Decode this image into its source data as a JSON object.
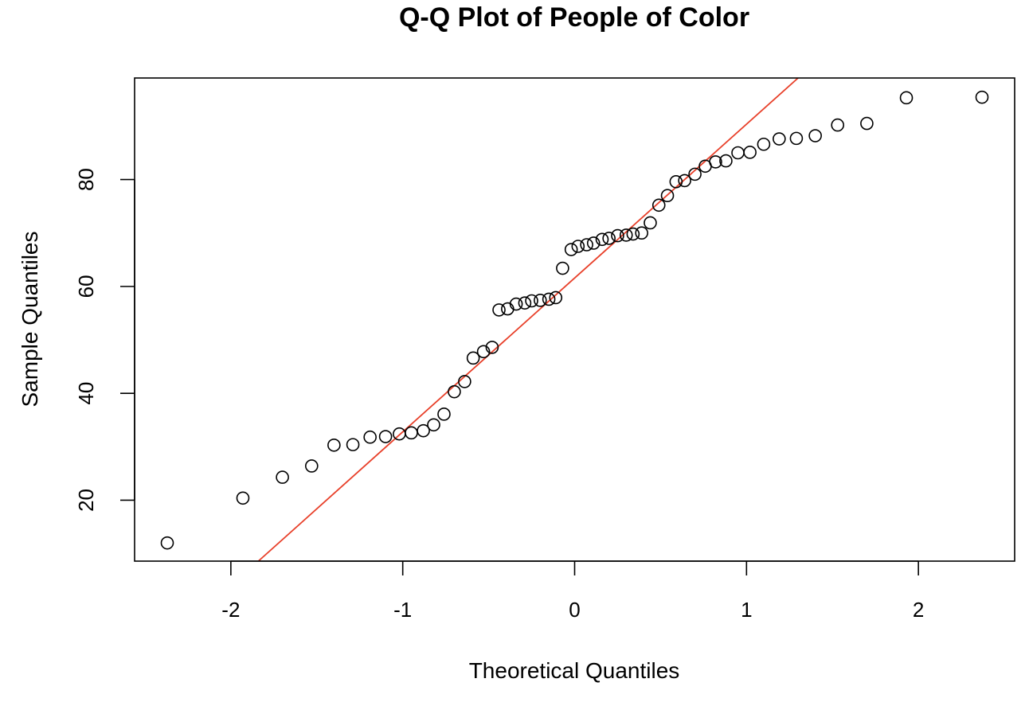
{
  "chart_data": {
    "type": "scatter",
    "title": "Q-Q Plot of People of Color",
    "xlabel": "Theoretical Quantiles",
    "ylabel": "Sample Quantiles",
    "xlim": [
      -2.56,
      2.56
    ],
    "ylim": [
      8.6,
      99
    ],
    "xticks": [
      -2,
      -1,
      0,
      1,
      2
    ],
    "xtick_labels": [
      "-2",
      "-1",
      "0",
      "1",
      "2"
    ],
    "yticks": [
      20,
      40,
      60,
      80
    ],
    "ytick_labels": [
      "20",
      "40",
      "60",
      "80"
    ],
    "grid": false,
    "points": [
      {
        "x": -2.37,
        "y": 12.0
      },
      {
        "x": -1.93,
        "y": 20.4
      },
      {
        "x": -1.7,
        "y": 24.3
      },
      {
        "x": -1.53,
        "y": 26.4
      },
      {
        "x": -1.4,
        "y": 30.3
      },
      {
        "x": -1.29,
        "y": 30.4
      },
      {
        "x": -1.19,
        "y": 31.8
      },
      {
        "x": -1.1,
        "y": 31.9
      },
      {
        "x": -1.02,
        "y": 32.4
      },
      {
        "x": -0.95,
        "y": 32.6
      },
      {
        "x": -0.88,
        "y": 33.0
      },
      {
        "x": -0.82,
        "y": 34.1
      },
      {
        "x": -0.76,
        "y": 36.1
      },
      {
        "x": -0.7,
        "y": 40.3
      },
      {
        "x": -0.64,
        "y": 42.2
      },
      {
        "x": -0.59,
        "y": 46.6
      },
      {
        "x": -0.53,
        "y": 47.8
      },
      {
        "x": -0.48,
        "y": 48.6
      },
      {
        "x": -0.44,
        "y": 55.6
      },
      {
        "x": -0.39,
        "y": 55.8
      },
      {
        "x": -0.34,
        "y": 56.7
      },
      {
        "x": -0.29,
        "y": 56.9
      },
      {
        "x": -0.25,
        "y": 57.3
      },
      {
        "x": -0.2,
        "y": 57.4
      },
      {
        "x": -0.15,
        "y": 57.6
      },
      {
        "x": -0.11,
        "y": 57.9
      },
      {
        "x": -0.07,
        "y": 63.4
      },
      {
        "x": -0.02,
        "y": 66.9
      },
      {
        "x": 0.02,
        "y": 67.5
      },
      {
        "x": 0.07,
        "y": 67.8
      },
      {
        "x": 0.11,
        "y": 68.1
      },
      {
        "x": 0.16,
        "y": 68.8
      },
      {
        "x": 0.2,
        "y": 69.0
      },
      {
        "x": 0.25,
        "y": 69.5
      },
      {
        "x": 0.3,
        "y": 69.6
      },
      {
        "x": 0.34,
        "y": 69.8
      },
      {
        "x": 0.39,
        "y": 70.0
      },
      {
        "x": 0.44,
        "y": 71.9
      },
      {
        "x": 0.49,
        "y": 75.2
      },
      {
        "x": 0.54,
        "y": 77.0
      },
      {
        "x": 0.59,
        "y": 79.6
      },
      {
        "x": 0.64,
        "y": 79.8
      },
      {
        "x": 0.7,
        "y": 81.0
      },
      {
        "x": 0.76,
        "y": 82.5
      },
      {
        "x": 0.82,
        "y": 83.3
      },
      {
        "x": 0.88,
        "y": 83.5
      },
      {
        "x": 0.95,
        "y": 85.0
      },
      {
        "x": 1.02,
        "y": 85.1
      },
      {
        "x": 1.1,
        "y": 86.6
      },
      {
        "x": 1.19,
        "y": 87.6
      },
      {
        "x": 1.29,
        "y": 87.7
      },
      {
        "x": 1.4,
        "y": 88.2
      },
      {
        "x": 1.53,
        "y": 90.2
      },
      {
        "x": 1.7,
        "y": 90.5
      },
      {
        "x": 1.93,
        "y": 95.3
      },
      {
        "x": 2.37,
        "y": 95.4
      }
    ],
    "reference_line": {
      "x1": -1.84,
      "y1": 8.6,
      "x2": 1.3,
      "y2": 99,
      "color": "#e8402a"
    },
    "point_style": {
      "stroke": "#000000",
      "fill": "none"
    }
  }
}
